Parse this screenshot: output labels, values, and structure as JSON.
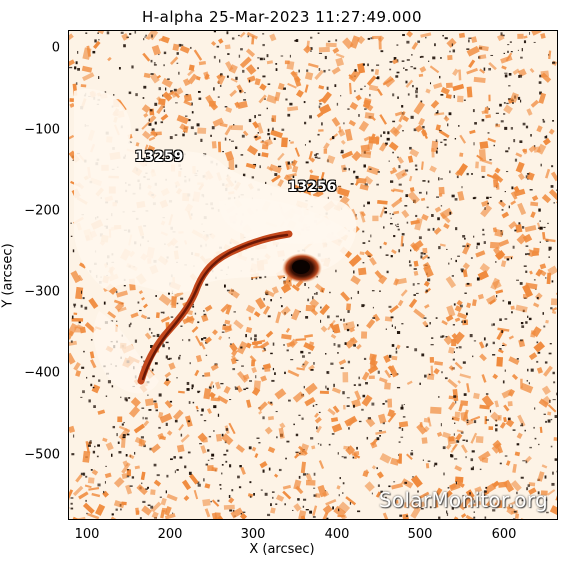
{
  "title": "H-alpha 25-Mar-2023 11:27:49.000",
  "axes": {
    "xlabel": "X (arcsec)",
    "ylabel": "Y (arcsec)",
    "x_ticks": [
      "100",
      "200",
      "300",
      "400",
      "500",
      "600"
    ],
    "y_ticks": [
      "0",
      "−100",
      "−200",
      "−300",
      "−400",
      "−500"
    ]
  },
  "regions": [
    {
      "label": "13259"
    },
    {
      "label": "13256"
    }
  ],
  "watermark": "SolarMonitor.org",
  "colors": {
    "background": "#fdf3e6",
    "orange": "#f08a3c",
    "dark": "#1a0d05",
    "filament": "#c4481c",
    "sunspot": "#140500"
  }
}
